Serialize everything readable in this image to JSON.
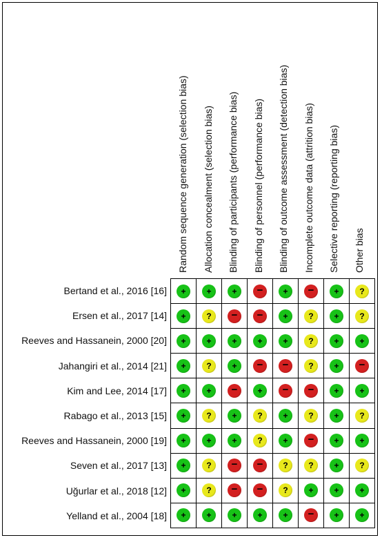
{
  "domains": [
    "Random sequence generation (selection bias)",
    "Allocation concealment (selection bias)",
    "Blinding of participants (performance bias)",
    "Blinding of personnel (performance bias)",
    "Blinding of outcome assessment (detection bias)",
    "Incomplete outcome data (attrition bias)",
    "Selective reporting (reporting bias)",
    "Other bias"
  ],
  "symbols": {
    "low": "+",
    "unclear": "?",
    "high": "−"
  },
  "colors": {
    "low": "#17c217",
    "unclear": "#e8e81c",
    "high": "#d32020"
  },
  "studies": [
    {
      "label": "Bertand et al., 2016 [16]",
      "judgements": [
        "low",
        "low",
        "low",
        "high",
        "low",
        "high",
        "low",
        "unclear"
      ]
    },
    {
      "label": "Ersen et al., 2017 [14]",
      "judgements": [
        "low",
        "unclear",
        "high",
        "high",
        "low",
        "unclear",
        "low",
        "unclear"
      ]
    },
    {
      "label": "Reeves and Hassanein, 2000 [20]",
      "judgements": [
        "low",
        "low",
        "low",
        "low",
        "low",
        "unclear",
        "low",
        "low"
      ]
    },
    {
      "label": "Jahangiri et al., 2014 [21]",
      "judgements": [
        "low",
        "unclear",
        "low",
        "high",
        "high",
        "unclear",
        "low",
        "high"
      ]
    },
    {
      "label": "Kim and Lee, 2014 [17]",
      "judgements": [
        "low",
        "low",
        "high",
        "low",
        "high",
        "high",
        "low",
        "low"
      ]
    },
    {
      "label": "Rabago et al., 2013 [15]",
      "judgements": [
        "low",
        "unclear",
        "low",
        "unclear",
        "low",
        "unclear",
        "low",
        "unclear"
      ]
    },
    {
      "label": "Reeves and Hassanein, 2000 [19]",
      "judgements": [
        "low",
        "low",
        "low",
        "unclear",
        "low",
        "high",
        "low",
        "low"
      ]
    },
    {
      "label": "Seven et al., 2017 [13]",
      "judgements": [
        "low",
        "unclear",
        "high",
        "high",
        "unclear",
        "unclear",
        "low",
        "unclear"
      ]
    },
    {
      "label": "Uğurlar et al., 2018 [12]",
      "judgements": [
        "low",
        "unclear",
        "high",
        "high",
        "unclear",
        "low",
        "low",
        "low"
      ]
    },
    {
      "label": "Yelland et al., 2004 [18]",
      "judgements": [
        "low",
        "low",
        "low",
        "low",
        "low",
        "high",
        "low",
        "low"
      ]
    }
  ]
}
